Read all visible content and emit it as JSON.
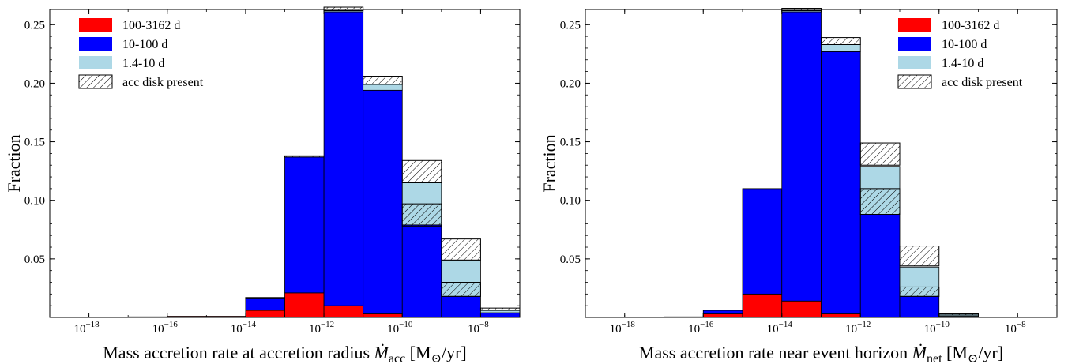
{
  "chart_data": [
    {
      "type": "bar",
      "stacked": true,
      "xlabel": "Mass accretion rate at accretion radius",
      "xlabel_symbol": "Ṁ",
      "xlabel_subscript": "acc",
      "xlabel_units": "[M",
      "xlabel_units_sub": "⊙",
      "xlabel_units_end": "/yr]",
      "ylabel": "Fraction",
      "x_log_edges": [
        -19,
        -18,
        -17,
        -16,
        -15,
        -14,
        -13,
        -12,
        -11,
        -10,
        -9,
        -8,
        -7
      ],
      "x_ticks": [
        {
          "exp": -18,
          "label": "−18"
        },
        {
          "exp": -16,
          "label": "−16"
        },
        {
          "exp": -14,
          "label": "−14"
        },
        {
          "exp": -12,
          "label": "−12"
        },
        {
          "exp": -10,
          "label": "−10"
        },
        {
          "exp": -8,
          "label": "−8"
        }
      ],
      "x_tick_base": "10",
      "ylim": [
        0,
        0.263
      ],
      "y_ticks": [
        "0.05",
        "0.10",
        "0.15",
        "0.20",
        "0.25"
      ],
      "y_tick_values": [
        0.05,
        0.1,
        0.15,
        0.2,
        0.25
      ],
      "series": [
        {
          "name": "100-3162 d",
          "color": "#ff0000",
          "values": [
            0,
            0,
            0.0005,
            0.001,
            0.001,
            0.006,
            0.021,
            0.01,
            0.003,
            0,
            0,
            0
          ]
        },
        {
          "name": "10-100 d",
          "color": "#0000ff",
          "values": [
            0,
            0,
            0,
            0,
            0,
            0.01,
            0.116,
            0.251,
            0.191,
            0.079,
            0.018,
            0.004
          ]
        },
        {
          "name": "1.4-10 d",
          "color": "#add8e6",
          "values": [
            0,
            0,
            0,
            0,
            0,
            0,
            0,
            0.001,
            0.005,
            0.036,
            0.031,
            0.002
          ]
        }
      ],
      "hatched": [
        {
          "bottom": 0.016,
          "top": 0.017
        },
        {
          "bottom": 0.137,
          "top": 0.138
        },
        {
          "bottom": 0.262,
          "top": 0.265
        },
        {
          "bottom": 0.199,
          "top": 0.206
        },
        {
          "bottom": 0.115,
          "top": 0.134
        },
        {
          "bottom": 0.049,
          "top": 0.067
        },
        {
          "bottom": 0.078,
          "top": 0.097
        },
        {
          "bottom": 0.018,
          "top": 0.03
        },
        {
          "bottom": 0.006,
          "top": 0.008
        }
      ],
      "hatched_bins": [
        5,
        6,
        7,
        8,
        9,
        10,
        9,
        10,
        11
      ],
      "legend": {
        "position": "top-left",
        "items": [
          "100-3162 d",
          "10-100 d",
          "1.4-10 d",
          "acc disk present"
        ]
      }
    },
    {
      "type": "bar",
      "stacked": true,
      "xlabel": "Mass accretion rate near event horizon",
      "xlabel_symbol": "Ṁ",
      "xlabel_subscript": "net",
      "xlabel_units": "[M",
      "xlabel_units_sub": "⊙",
      "xlabel_units_end": "/yr]",
      "ylabel": "Fraction",
      "x_log_edges": [
        -19,
        -18,
        -17,
        -16,
        -15,
        -14,
        -13,
        -12,
        -11,
        -10,
        -9,
        -8,
        -7
      ],
      "x_ticks": [
        {
          "exp": -18,
          "label": "−18"
        },
        {
          "exp": -16,
          "label": "−16"
        },
        {
          "exp": -14,
          "label": "−14"
        },
        {
          "exp": -12,
          "label": "−12"
        },
        {
          "exp": -10,
          "label": "−10"
        },
        {
          "exp": -8,
          "label": "−8"
        }
      ],
      "x_tick_base": "10",
      "ylim": [
        0,
        0.263
      ],
      "y_ticks": [
        "0.05",
        "0.10",
        "0.15",
        "0.20",
        "0.25"
      ],
      "y_tick_values": [
        0.05,
        0.1,
        0.15,
        0.2,
        0.25
      ],
      "series": [
        {
          "name": "100-3162 d",
          "color": "#ff0000",
          "values": [
            0,
            0,
            0.0005,
            0.003,
            0.02,
            0.014,
            0.003,
            0,
            0,
            0,
            0,
            0
          ]
        },
        {
          "name": "10-100 d",
          "color": "#0000ff",
          "values": [
            0,
            0,
            0,
            0.003,
            0.09,
            0.247,
            0.224,
            0.088,
            0.018,
            0.001,
            0,
            0
          ]
        },
        {
          "name": "1.4-10 d",
          "color": "#add8e6",
          "values": [
            0,
            0,
            0,
            0,
            0,
            0.001,
            0.006,
            0.041,
            0.025,
            0.002,
            0,
            0
          ]
        }
      ],
      "hatched": [
        {
          "bottom": 0.262,
          "top": 0.264
        },
        {
          "bottom": 0.233,
          "top": 0.239
        },
        {
          "bottom": 0.13,
          "top": 0.149
        },
        {
          "bottom": 0.088,
          "top": 0.11
        },
        {
          "bottom": 0.044,
          "top": 0.061
        },
        {
          "bottom": 0.018,
          "top": 0.026
        },
        {
          "bottom": 0.002,
          "top": 0.003
        }
      ],
      "hatched_bins": [
        5,
        6,
        7,
        7,
        8,
        8,
        9
      ],
      "legend": {
        "position": "top-right",
        "items": [
          "100-3162 d",
          "10-100 d",
          "1.4-10 d",
          "acc disk present"
        ]
      }
    }
  ]
}
